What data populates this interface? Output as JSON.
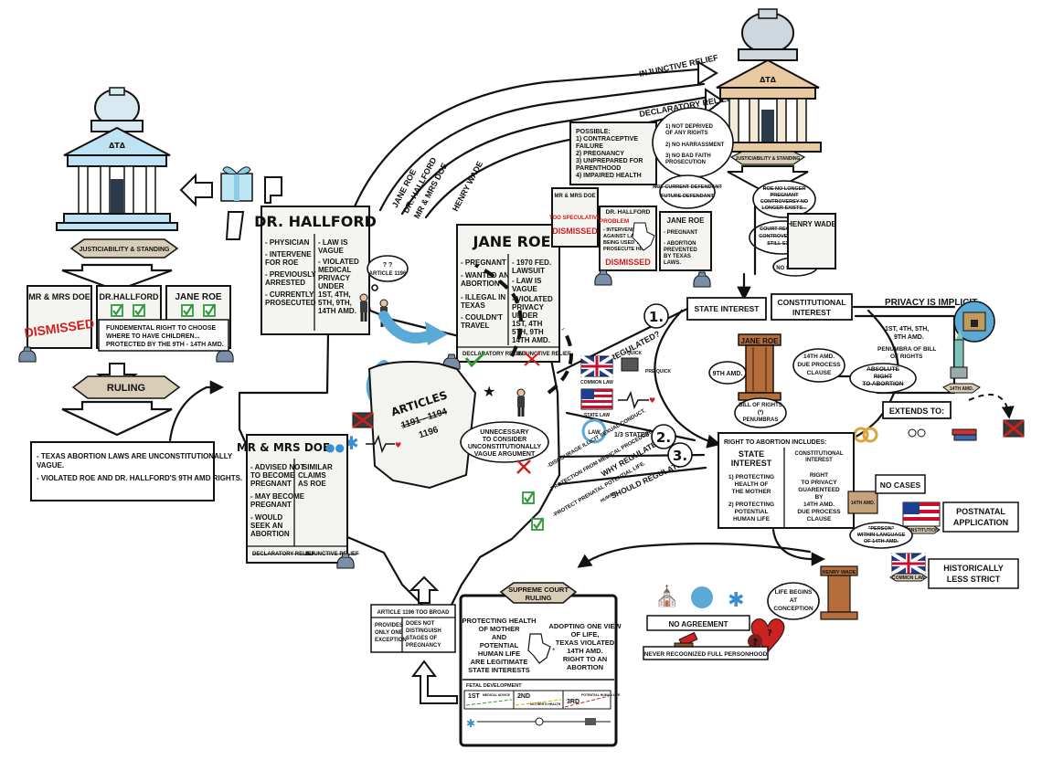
{
  "courts": {
    "left_label": "JUSTICIABILITY & STANDING",
    "right_label": "JUSTICIABILITY & STANDING",
    "seal_text": "ΔTΔ"
  },
  "left_cards": {
    "doe_title": "MR & MRS DOE",
    "doe_stamp": "DISMISSED",
    "hallford_title": "DR.HALLFORD",
    "roe_title": "JANE ROE",
    "fundamental_line1": "FUNDEMENTAL RIGHT TO CHOOSE",
    "fundamental_line2": "WHERE TO HAVE CHILDREN...",
    "fundamental_line3": "PROTECTED BY THE 9TH - 14TH AMD."
  },
  "ruling": {
    "label": "RULING",
    "line1": "- TEXAS ABORTION LAWS ARE UNCONSTITUTIONALLY",
    "line2": "  VAGUE.",
    "line3": "- VIOLATED ROE AND DR. HALLFORD'S 9TH AMD RIGHTS."
  },
  "hallford_card": {
    "title": "DR. HALLFORD",
    "col1": [
      "- PHYSICIAN",
      "- INTERVENE",
      "  FOR ROE",
      "- PREVIOUSLY",
      "  ARRESTED",
      "- CURRENTLY",
      "  PROSECUTED"
    ],
    "col2": [
      "- LAW IS",
      "  VAGUE",
      "- VIOLATED",
      "  MEDICAL",
      "  PRIVACY",
      "  UNDER",
      "  1ST, 4TH,",
      "  5TH, 9TH,",
      "  14TH AMD."
    ]
  },
  "roe_card": {
    "title": "JANE ROE",
    "col1": [
      "- PREGNANT",
      "- WANTED AN",
      "  ABORTION",
      "- ILLEGAL IN",
      "  TEXAS",
      "- COULDN'T",
      "  TRAVEL"
    ],
    "col2": [
      "- 1970 FED.",
      "  LAWSUIT",
      "- LAW IS",
      "  VAGUE",
      "- VIOLATED",
      "  PRIVACY",
      "  UNDER",
      "  1ST, 4TH",
      "  5TH, 9TH",
      "  14TH AMD."
    ],
    "foot_left": "DECLARATORY RELIEF",
    "foot_right": "INJUNCTIVE RELIEF"
  },
  "doe_card": {
    "title": "MR & MRS DOE",
    "col1": [
      "- ADVISED NOT",
      "  TO BECOME",
      "  PREGNANT",
      "- MAY BECOME",
      "  PREGNANT",
      "- WOULD",
      "  SEEK AN",
      "  ABORTION"
    ],
    "col2": [
      "- SIMILAR",
      "  CLAIMS",
      "  AS ROE"
    ],
    "foot_left": "DECLARATORY RELIEF",
    "foot_right": "INJUNCTIVE RELIEF"
  },
  "flow": {
    "arc_names": [
      "JANE ROE",
      "DR. HALLFORD",
      "MR & MRS DOE"
    ],
    "henry_wade": "HENRY WADE",
    "injunctive": "INJUNCTIVE RELIEF",
    "declaratory": "DECLARATORY RELIEF",
    "article_bubble": "ARTICLE 1196",
    "scroll_title": "ARTICLES",
    "scroll_strike": "1191 - 1194",
    "scroll_keep": "1196",
    "unnecessary": [
      "UNNECESSARY",
      "TO CONSIDER",
      "UNCONSTITUTIONALLY",
      "VAGUE ARGUMENT"
    ]
  },
  "possible_box": {
    "lines": [
      "POSSIBLE:",
      "1) CONTRACEPTIVE",
      "   FAILURE",
      "2) PREGNANCY",
      "3) UNPREPARED FOR",
      "   PARENTHOOD",
      "4) IMPAIRED HEALTH"
    ],
    "doe_label": "MR & MRS DOE",
    "too_spec": "TOO SPECULATIVE",
    "dismissed": "DISMISSED"
  },
  "not_deprived": [
    "1) NOT DEPRIVED",
    "  OF ANY RIGHTS",
    "2) NO HARRASSMENT",
    "3) NO BAD FAITH",
    "   PROSECUTION"
  ],
  "hallford_problem": {
    "title": "DR. HALLFORD",
    "problem": "PROBLEM",
    "lines": [
      "- INTERVENING",
      "  AGAINST LAWS",
      "  BEING USED TO",
      "  PROSECUTE HIM"
    ],
    "dismissed": "DISMISSED",
    "not_current": "NOT CURRENT DEFENDANT",
    "future": "FUTURE DEFENDANT"
  },
  "roe_small": {
    "title": "JANE ROE",
    "lines": [
      "- PREGNANT",
      "- ABORTION",
      "  PREVENTED",
      "  BY TEXAS",
      "  LAWS."
    ]
  },
  "right_side": {
    "roe_no_longer": [
      "ROE NO LONGER",
      "PREGNANT",
      "CONTROVERSY NO",
      "LONGER EXISTS..."
    ],
    "court_requires": [
      "COURT REQUIRES",
      "CONTROVERSY TO",
      "STILL EXIST."
    ],
    "no_standing": "NO STANDING",
    "henry_wade": "HENRY WADE"
  },
  "interests": {
    "state": "STATE INTEREST",
    "constitutional": [
      "CONSTITUTIONAL",
      "INTEREST"
    ],
    "privacy": "PRIVACY IS IMPLICIT",
    "amds": [
      "1ST, 4TH, 5TH,",
      "9TH AMD."
    ],
    "penumbra": [
      "PENUMBRA OF BILL",
      "OF RIGHTS"
    ],
    "absolute": [
      "ABSOLUTE",
      "RIGHT",
      "TO ABORTION"
    ],
    "extends": "EXTENDS TO:",
    "pillar_name": "JANE ROE",
    "ninth": "9TH AMD.",
    "due_process": [
      "14TH AMD.",
      "DUE PROCESS",
      "CLAUSE"
    ],
    "bill": [
      "BILL OF RIGHTS",
      "(*)",
      "PENUMBRAS"
    ],
    "statue_label": "14TH AMD."
  },
  "state_questions": {
    "q1": "HAS REGULATED?",
    "q2": "WHY REGULATE?",
    "q3": "SHOULD REGULATE?",
    "n1": "1.",
    "n2": "2.",
    "n3": "3.",
    "quick": "QUICK",
    "pre_quick": "PRE-QUICK",
    "common_law": "COMMON LAW",
    "state_law": "STATE LAW",
    "law": "LAW",
    "third_states": "1/3 STATES",
    "reasons": [
      "-DISCOURAGE ILLICIT SEXUAL CONDUCT.",
      "-PROTECTION FROM MEDICAL PROCEDURE.",
      "-PROTECT PRENATAL POTENTIAL LIFE."
    ],
    "human": "HUMAN"
  },
  "includes": {
    "header": "RIGHT TO ABORTION INCLUDES:",
    "state_title": [
      "STATE",
      "INTEREST"
    ],
    "state_items": [
      "1) PROTECTING",
      "HEALTH OF",
      "THE MOTHER",
      "2) PROTECTING",
      "POTENTIAL",
      "HUMAN LIFE"
    ],
    "const_title": [
      "CONSTITUTIONAL",
      "INTEREST"
    ],
    "const_items": [
      "RIGHT",
      "TO PRIVACY",
      "GUARENTEED",
      "BY",
      "14TH AMD.",
      "DUE PROCESS",
      "CLAUSE"
    ]
  },
  "wade_corner": {
    "no_cases": "NO CASES",
    "book": "14TH AMD.",
    "postnatal": [
      "POSTNATAL",
      "APPLICATION"
    ],
    "constitution": "CONSTITUTION",
    "person": [
      "\"PERSON\"",
      "WITHIN LANGUAGE",
      "OF 14TH AMD."
    ],
    "historically": [
      "HISTORICALLY",
      "LESS STRICT"
    ],
    "common_law": "COMMON LAW",
    "pillar": "HENRY WADE",
    "life_begins": [
      "LIFE BEGINS",
      "AT",
      "CONCEPTION"
    ],
    "no_agreement": "NO AGREEMENT",
    "never": "NEVER RECOGNIZED FULL PERSONHOOD"
  },
  "supreme": {
    "banner": [
      "SUPREME COURT",
      "RULING"
    ],
    "left": [
      "PROTECTING HEALTH",
      "OF MOTHER",
      "AND",
      "POTENTIAL",
      "HUMAN LIFE",
      "ARE LEGITIMATE",
      "STATE INTERESTS"
    ],
    "right": [
      "ADOPTING ONE VIEW",
      "OF LIFE,",
      "TEXAS VIOLATED",
      "14TH AMD.",
      "RIGHT TO AN",
      "ABORTION"
    ],
    "fetal": "FETAL DEVELOPMENT",
    "tri1": "1ST",
    "tri2": "2ND",
    "tri3": "3RD",
    "tri1_note": "MEDICAL ADVICE",
    "tri2_note": "MOTHER'S HEALTH",
    "tri3_note": "POTENTIAL HUMAN LIFE"
  },
  "article_broad": {
    "title": "ARTICLE 1196 TOO BROAD",
    "left": [
      "PROVIDES",
      "ONLY ONE",
      "EXCEPTION"
    ],
    "right": [
      "DOES NOT",
      "DISTINGUISH",
      "STAGES OF",
      "PREGNANCY"
    ]
  },
  "colors": {
    "accent_red": "#d01f1f",
    "check_green": "#2e9b3a",
    "court_blue": "#bfe3f2",
    "court_tan": "#e8c9a0",
    "pillar_brown": "#b46d3b",
    "banner_tan": "#d9cdb8"
  }
}
